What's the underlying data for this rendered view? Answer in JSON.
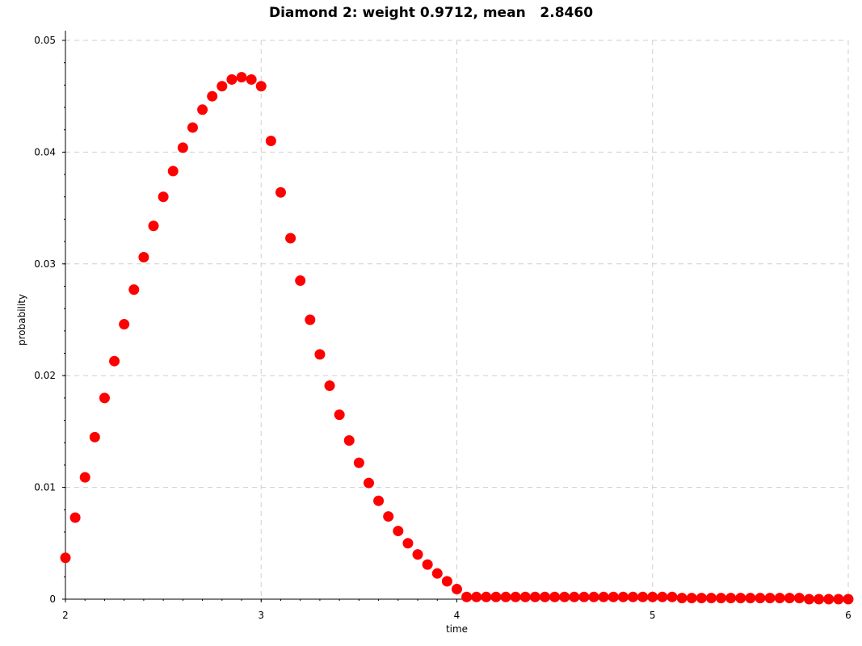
{
  "chart_data": {
    "type": "scatter",
    "title": "Diamond 2: weight 0.9712, mean   2.8460",
    "xlabel": "time",
    "ylabel": "probability",
    "xlim": [
      2,
      6
    ],
    "ylim": [
      0,
      0.05
    ],
    "xticks": [
      "2",
      "3",
      "4",
      "5",
      "6"
    ],
    "yticks": [
      "0",
      "0.01",
      "0.02",
      "0.03",
      "0.04",
      "0.05"
    ],
    "grid": true,
    "marker_color": "#ff0000",
    "series": [
      {
        "x": [
          2.0,
          2.05,
          2.1,
          2.15,
          2.2,
          2.25,
          2.3,
          2.35,
          2.4,
          2.45,
          2.5,
          2.55,
          2.6,
          2.65,
          2.7,
          2.75,
          2.8,
          2.85,
          2.9,
          2.95,
          3.0,
          3.05,
          3.1,
          3.15,
          3.2,
          3.25,
          3.3,
          3.35,
          3.4,
          3.45,
          3.5,
          3.55,
          3.6,
          3.65,
          3.7,
          3.75,
          3.8,
          3.85,
          3.9,
          3.95,
          4.0,
          4.05,
          4.1,
          4.15,
          4.2,
          4.25,
          4.3,
          4.35,
          4.4,
          4.45,
          4.5,
          4.55,
          4.6,
          4.65,
          4.7,
          4.75,
          4.8,
          4.85,
          4.9,
          4.95,
          5.0,
          5.05,
          5.1,
          5.15,
          5.2,
          5.25,
          5.3,
          5.35,
          5.4,
          5.45,
          5.5,
          5.55,
          5.6,
          5.65,
          5.7,
          5.75,
          5.8,
          5.85,
          5.9,
          5.95,
          6.0
        ],
        "y": [
          0.0037,
          0.0073,
          0.0109,
          0.0145,
          0.018,
          0.0213,
          0.0246,
          0.0277,
          0.0306,
          0.0334,
          0.036,
          0.0383,
          0.0404,
          0.0422,
          0.0438,
          0.045,
          0.0459,
          0.0465,
          0.0467,
          0.0465,
          0.0459,
          0.041,
          0.0364,
          0.0323,
          0.0285,
          0.025,
          0.0219,
          0.0191,
          0.0165,
          0.0142,
          0.0122,
          0.0104,
          0.0088,
          0.0074,
          0.0061,
          0.005,
          0.004,
          0.0031,
          0.0023,
          0.0016,
          0.0009,
          0.0002,
          0.0002,
          0.0002,
          0.0002,
          0.0002,
          0.0002,
          0.0002,
          0.0002,
          0.0002,
          0.0002,
          0.0002,
          0.0002,
          0.0002,
          0.0002,
          0.0002,
          0.0002,
          0.0002,
          0.0002,
          0.0002,
          0.0002,
          0.0002,
          0.0002,
          0.0001,
          0.0001,
          0.0001,
          0.0001,
          0.0001,
          0.0001,
          0.0001,
          0.0001,
          0.0001,
          0.0001,
          0.0001,
          0.0001,
          0.0001,
          0.0,
          0.0,
          0.0,
          0.0,
          0.0
        ]
      }
    ]
  }
}
